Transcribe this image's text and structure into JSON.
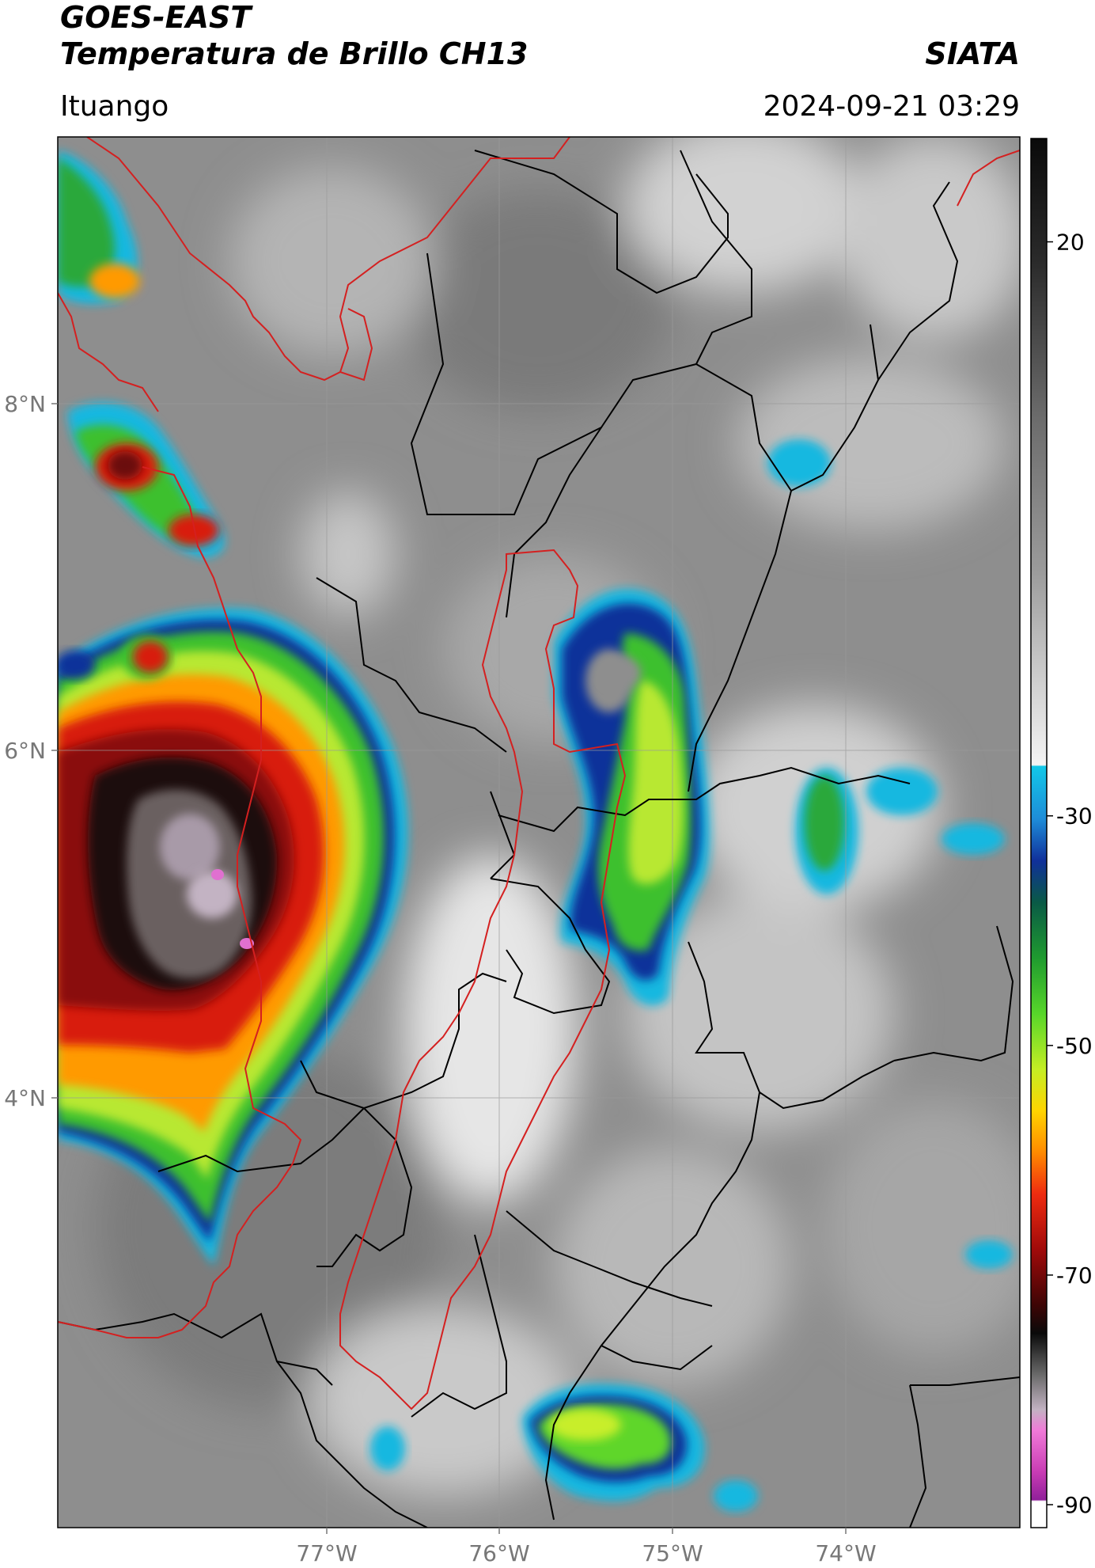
{
  "header": {
    "satellite": "GOES-EAST",
    "product": "Temperatura de Brillo CH13",
    "brand": "SIATA",
    "region": "Ituango",
    "datetime": "2024-09-21 03:29"
  },
  "map": {
    "lat_labels": [
      "8°N",
      "6°N",
      "4°N"
    ],
    "lon_labels": [
      "77°W",
      "76°W",
      "75°W",
      "74°W"
    ],
    "lat_ticks": [
      8,
      6,
      4
    ],
    "lon_ticks": [
      -77,
      -76,
      -75,
      -74
    ],
    "gridlines": true,
    "extent": {
      "lon_min": -78.55,
      "lon_max": -73.0,
      "lat_min": 1.55,
      "lat_max": 9.55
    }
  },
  "colorbar": {
    "ticks": [
      "20",
      "-30",
      "-50",
      "-70",
      "-90"
    ],
    "tick_values": [
      20,
      -30,
      -50,
      -70,
      -90
    ],
    "range": [
      -92,
      29
    ]
  },
  "colors": {
    "border_red": "#d42020",
    "border_black": "#000000"
  }
}
